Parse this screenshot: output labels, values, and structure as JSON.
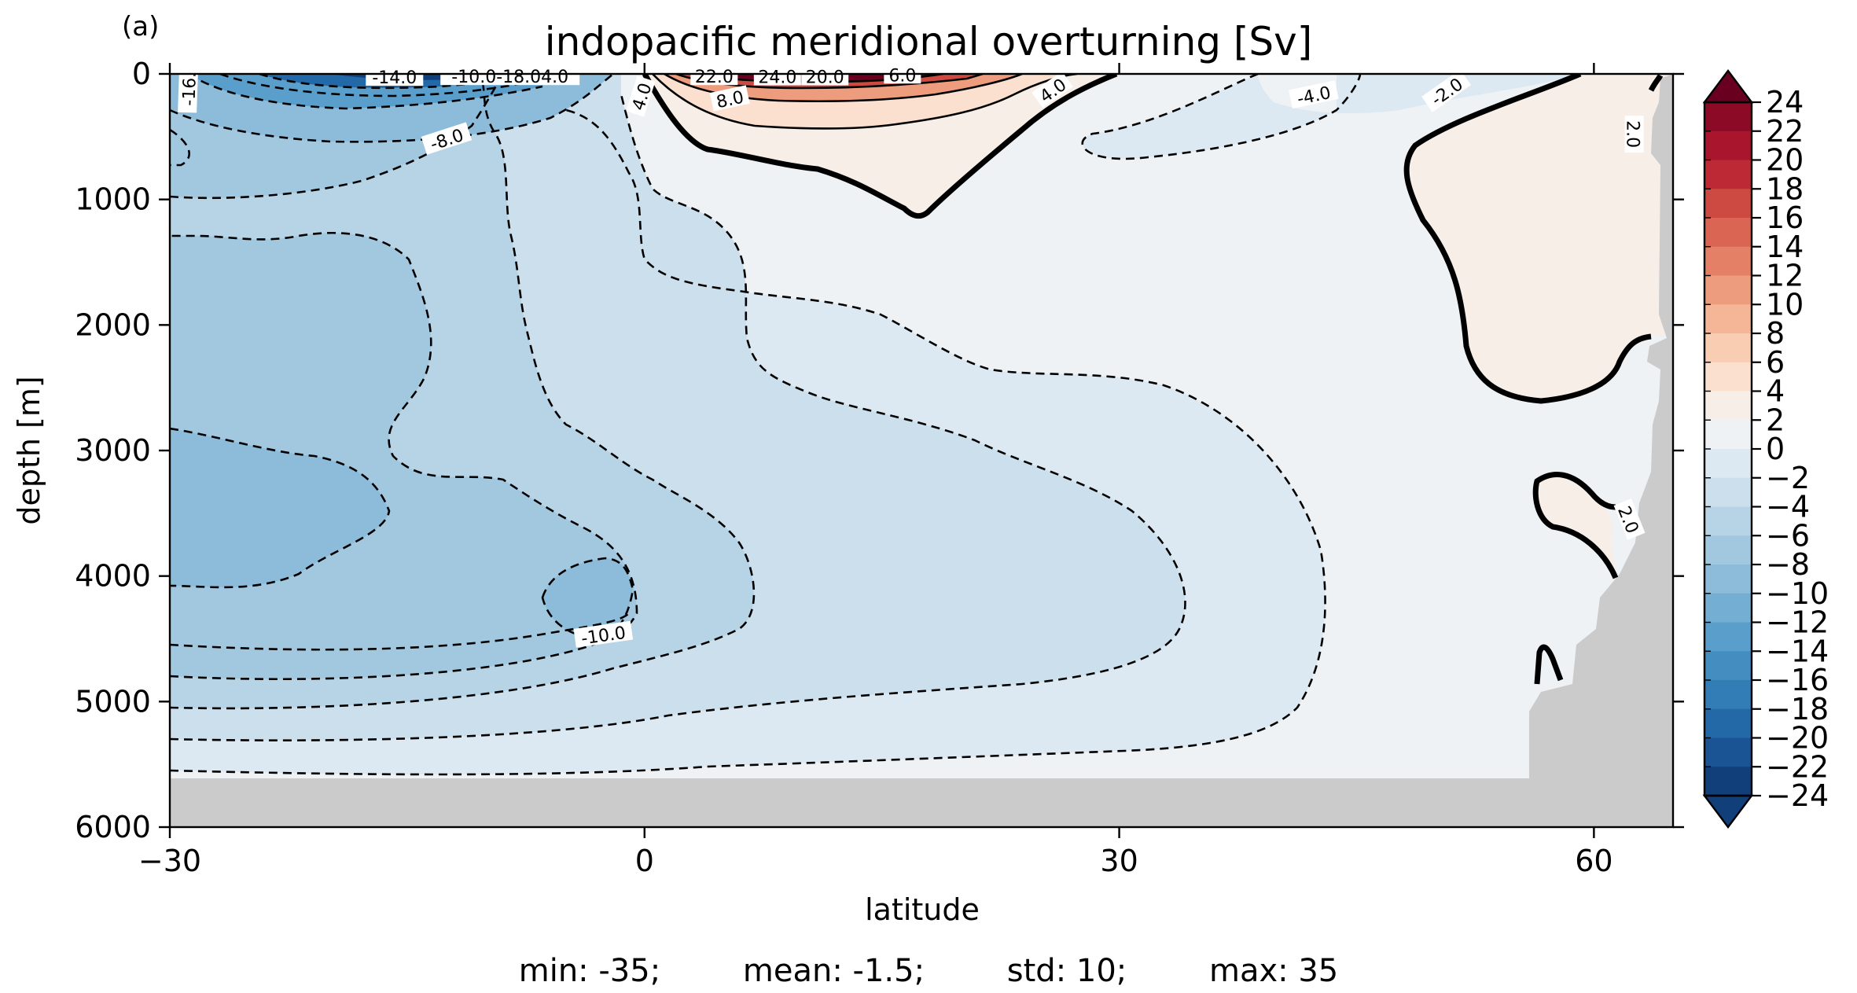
{
  "panel_label": "(a)",
  "chart_data": {
    "type": "contour",
    "title": "indopacific meridional overturning [Sv]",
    "xlabel": "latitude",
    "ylabel": "depth [m]",
    "xlim": [
      -30,
      65
    ],
    "ylim": [
      6000,
      0
    ],
    "xticks": [
      {
        "value": -30,
        "label": "−30"
      },
      {
        "value": 0,
        "label": "0"
      },
      {
        "value": 30,
        "label": "30"
      },
      {
        "value": 60,
        "label": "60"
      }
    ],
    "yticks": [
      {
        "value": 0,
        "label": "0"
      },
      {
        "value": 1000,
        "label": "1000"
      },
      {
        "value": 2000,
        "label": "2000"
      },
      {
        "value": 3000,
        "label": "3000"
      },
      {
        "value": 4000,
        "label": "4000"
      },
      {
        "value": 5000,
        "label": "5000"
      },
      {
        "value": 6000,
        "label": "6000"
      }
    ],
    "colorbar": {
      "min": -24,
      "max": 24,
      "step": 2,
      "labels": [
        "24",
        "22",
        "20",
        "18",
        "16",
        "14",
        "12",
        "10",
        "8",
        "6",
        "4",
        "2",
        "0",
        "−2",
        "−4",
        "−6",
        "−8",
        "−10",
        "−12",
        "−14",
        "−16",
        "−18",
        "−20",
        "−22",
        "−24"
      ],
      "colors": [
        "#6a001f",
        "#8c0a26",
        "#a8152c",
        "#bd2a35",
        "#cc4a41",
        "#d96552",
        "#e48065",
        "#ee9c7e",
        "#f5b597",
        "#f9cdb2",
        "#fbe0cf",
        "#f7eee8",
        "#eef2f5",
        "#dde9f2",
        "#cbdfec",
        "#b7d4e6",
        "#a2c8e0",
        "#8cbcda",
        "#75aed3",
        "#5a9ecb",
        "#438dc1",
        "#337db7",
        "#2369a7",
        "#1a5494",
        "#103f79"
      ]
    },
    "contour_labels": [
      {
        "text": "-16.",
        "lat": -28.8,
        "depth": 120,
        "angle": -88
      },
      {
        "text": "-14.0",
        "lat": -15.8,
        "depth": 25,
        "angle": 0
      },
      {
        "text": "-10.0-18.04.0",
        "lat": -8.5,
        "depth": 20,
        "angle": 0
      },
      {
        "text": "-8.0",
        "lat": -12.5,
        "depth": 520,
        "angle": -18
      },
      {
        "text": "4.0",
        "lat": -0.2,
        "depth": 180,
        "angle": -72
      },
      {
        "text": "22.0",
        "lat": 4.4,
        "depth": 20,
        "angle": 0
      },
      {
        "text": "24.0",
        "lat": 8.4,
        "depth": 22,
        "angle": 0
      },
      {
        "text": "20.0",
        "lat": 11.4,
        "depth": 22,
        "angle": 0
      },
      {
        "text": "8.0",
        "lat": 5.4,
        "depth": 200,
        "angle": -12
      },
      {
        "text": "6.0",
        "lat": 16.3,
        "depth": 8,
        "angle": 0
      },
      {
        "text": "4.0",
        "lat": 25.8,
        "depth": 130,
        "angle": -35
      },
      {
        "text": "-4.0",
        "lat": 42.3,
        "depth": 170,
        "angle": -12
      },
      {
        "text": "-2.0",
        "lat": 50.7,
        "depth": 140,
        "angle": -35
      },
      {
        "text": "2.0",
        "lat": 62.5,
        "depth": 480,
        "angle": 90
      },
      {
        "text": "2.0",
        "lat": 62.2,
        "depth": 3550,
        "angle": 68
      },
      {
        "text": "-10.0",
        "lat": -2.6,
        "depth": 4470,
        "angle": -8
      }
    ],
    "stats": {
      "min": "min: -35;",
      "mean": "mean: -1.5;",
      "std": "std: 10;",
      "max": "max: 35"
    }
  }
}
